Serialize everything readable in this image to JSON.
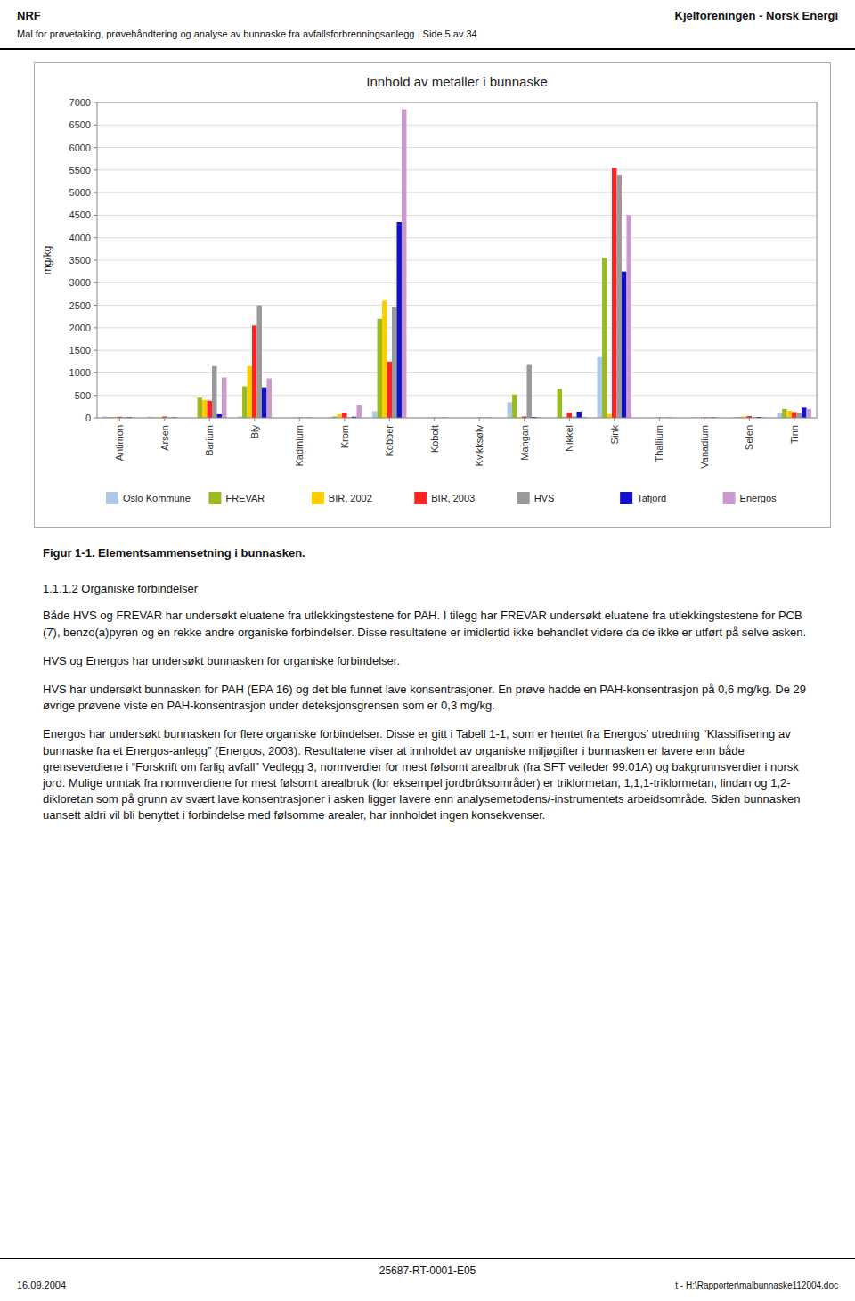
{
  "chart_data": {
    "type": "bar",
    "title": "Innhold av metaller i bunnaske",
    "ylabel": "mg/kg",
    "categories": [
      "Antimon",
      "Arsen",
      "Barium",
      "Bly",
      "Kadmium",
      "Krom",
      "Kobber",
      "Kobolt",
      "Kvikksølv",
      "Mangan",
      "Nikkel",
      "Sink",
      "Thallium",
      "Vanadium",
      "Selen",
      "Tinn"
    ],
    "series": [
      {
        "name": "Oslo Kommune",
        "color": "#aec6e8",
        "values": [
          30,
          25,
          5,
          30,
          2,
          20,
          150,
          2,
          2,
          350,
          5,
          1350,
          2,
          5,
          15,
          100
        ]
      },
      {
        "name": "FREVAR",
        "color": "#99bb22",
        "values": [
          15,
          10,
          450,
          700,
          3,
          30,
          2200,
          3,
          3,
          520,
          650,
          3550,
          3,
          10,
          20,
          200
        ]
      },
      {
        "name": "BIR, 2002",
        "color": "#ffcc00",
        "values": [
          20,
          15,
          400,
          1150,
          5,
          80,
          2600,
          5,
          5,
          20,
          30,
          80,
          5,
          10,
          30,
          160
        ]
      },
      {
        "name": "BIR, 2003",
        "color": "#ff2222",
        "values": [
          25,
          30,
          380,
          2050,
          8,
          110,
          1250,
          8,
          8,
          30,
          120,
          5550,
          8,
          15,
          40,
          130
        ]
      },
      {
        "name": "HVS",
        "color": "#999999",
        "values": [
          10,
          10,
          1150,
          2500,
          4,
          15,
          2450,
          4,
          4,
          1175,
          30,
          5400,
          4,
          10,
          10,
          110
        ]
      },
      {
        "name": "Tafjord",
        "color": "#1111cc",
        "values": [
          15,
          12,
          80,
          680,
          6,
          25,
          4350,
          6,
          6,
          20,
          140,
          3250,
          6,
          10,
          20,
          230
        ]
      },
      {
        "name": "Energos",
        "color": "#cc99cc",
        "values": [
          5,
          5,
          900,
          880,
          3,
          275,
          6850,
          3,
          3,
          20,
          20,
          4500,
          3,
          8,
          12,
          200
        ]
      }
    ],
    "ylim": [
      0,
      7000
    ],
    "yticks": [
      0,
      500,
      1000,
      1500,
      2000,
      2500,
      3000,
      3500,
      4000,
      4500,
      5000,
      5500,
      6000,
      6500,
      7000
    ],
    "grid": true,
    "legend": "bottom"
  },
  "header_left": "NRF",
  "header_right": "Kjelforeningen - Norsk Energi",
  "header_sub": "Mal for prøvetaking, prøvehåndtering og analyse av bunnaske fra avfallsforbrenningsanlegg   Side 5 av 34",
  "fig_caption": "Figur 1-1. Elementsammensetning i bunnasken.",
  "section_title": "1.1.1.2 Organiske forbindelser",
  "paragraphs": [
    "Både HVS og FREVAR har undersøkt eluatene fra utlekkingstestene for PAH. I tilegg har FREVAR undersøkt eluatene fra utlekkingstestene for PCB (7), benzo(a)pyren og en rekke andre organiske forbindelser. Disse resultatene er imidlertid ikke behandlet videre da de ikke er utført på selve asken.",
    "HVS og Energos har undersøkt bunnasken for organiske forbindelser.",
    "HVS har undersøkt bunnasken for PAH (EPA 16) og det ble funnet lave konsentrasjoner. En prøve hadde en PAH-konsentrasjon på 0,6 mg/kg. De 29 øvrige prøvene viste en PAH-konsentrasjon under deteksjonsgrensen som er 0,3 mg/kg.",
    "Energos har undersøkt bunnasken for flere organiske forbindelser. Disse er gitt i Tabell 1-1, som er hentet fra Energos’ utredning “Klassifisering av bunnaske fra et Energos-anlegg” (Energos, 2003). Resultatene viser at innholdet av organiske miljøgifter i bunnasken er lavere enn både grenseverdiene i “Forskrift om farlig avfall” Vedlegg 3, normverdier for mest følsomt arealbruk (fra SFT veileder 99:01A) og bakgrunnsverdier i norsk jord. Mulige unntak fra normverdiene for mest følsomt arealbruk (for eksempel jordbrúksområder) er triklormetan, 1,1,1-triklormetan, lindan og 1,2-dikloretan som på grunn av svært lave konsentrasjoner i asken ligger lavere enn analysemetodens/-instrumentets arbeidsområde. Siden bunnasken uansett aldri vil bli benyttet i forbindelse med følsomme arealer, har innholdet ingen konsekvenser."
  ],
  "footer_center": "25687-RT-0001-E05",
  "footer_left": "16.09.2004",
  "footer_right": "t - H:\\Rapporter\\malbunnaske112004.doc"
}
